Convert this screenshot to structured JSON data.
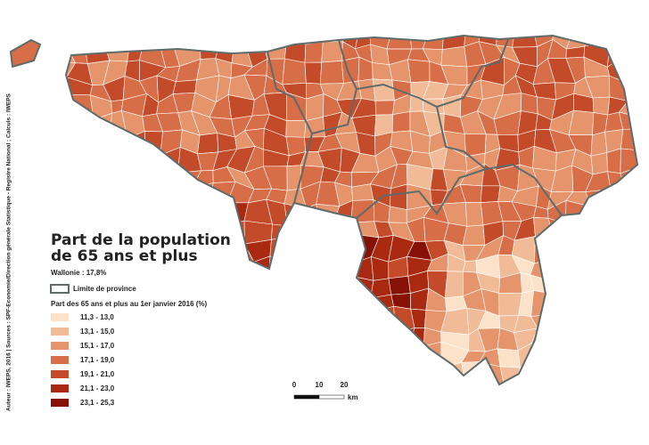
{
  "title_lines": [
    "Part de la population",
    "de 65 ans et plus"
  ],
  "subtitle": "Wallonie : 17,8%",
  "province_legend": "Limite de province",
  "legend": {
    "title": "Part des 65 ans et plus au 1er janvier 2016 (%)",
    "classes": [
      {
        "label": "11,3 - 13,0",
        "color": "#fbe2c9"
      },
      {
        "label": "13,1 - 15,0",
        "color": "#f2bb97"
      },
      {
        "label": "15,1 - 17,0",
        "color": "#e6946b"
      },
      {
        "label": "17,1 - 19,0",
        "color": "#d76e48"
      },
      {
        "label": "19,1 - 21,0",
        "color": "#c44b29"
      },
      {
        "label": "21,1 - 23,0",
        "color": "#a92a11"
      },
      {
        "label": "23,1 - 25,3",
        "color": "#871106"
      }
    ]
  },
  "scale": {
    "ticks": [
      "0",
      "10",
      "20"
    ],
    "unit": "km"
  },
  "source": "Auteur : IWEPS, 2016 | Sources : SPF-Economie/Direction générale Statistique - Registre National ; Calculs : IWEPS"
}
